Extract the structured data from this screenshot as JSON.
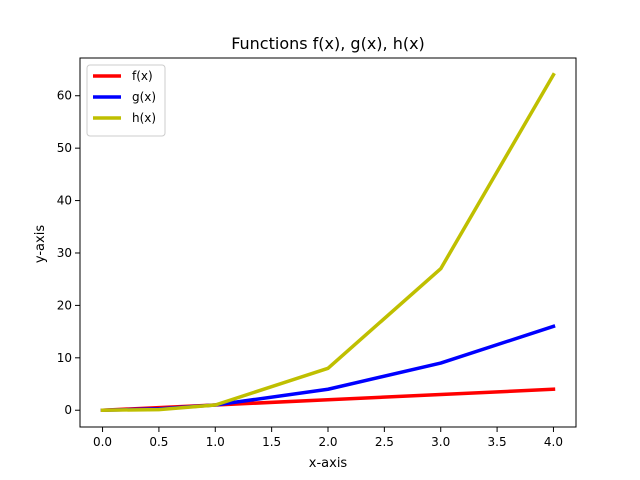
{
  "chart_data": {
    "type": "line",
    "title": "Functions f(x), g(x), h(x)",
    "xlabel": "x-axis",
    "ylabel": "y-axis",
    "x": [
      0,
      0.5,
      1,
      2,
      3,
      4
    ],
    "series": [
      {
        "name": "f(x)",
        "color": "#ff0000",
        "values": [
          0,
          0.5,
          1,
          2,
          3,
          4
        ]
      },
      {
        "name": "g(x)",
        "color": "#0000ff",
        "values": [
          0,
          0.25,
          1,
          4,
          9,
          16
        ]
      },
      {
        "name": "h(x)",
        "color": "#bfbf00",
        "values": [
          0,
          0.125,
          1,
          8,
          27,
          64
        ]
      }
    ],
    "xlim": [
      -0.2,
      4.2
    ],
    "ylim": [
      -3.2,
      67.2
    ],
    "xticks": [
      0,
      0.5,
      1,
      1.5,
      2,
      2.5,
      3,
      3.5,
      4
    ],
    "xtick_labels": [
      "0.0",
      "0.5",
      "1.0",
      "1.5",
      "2.0",
      "2.5",
      "3.0",
      "3.5",
      "4.0"
    ],
    "yticks": [
      0,
      10,
      20,
      30,
      40,
      50,
      60
    ],
    "ytick_labels": [
      "0",
      "10",
      "20",
      "30",
      "40",
      "50",
      "60"
    ],
    "grid": false,
    "legend_position": "top-left"
  }
}
